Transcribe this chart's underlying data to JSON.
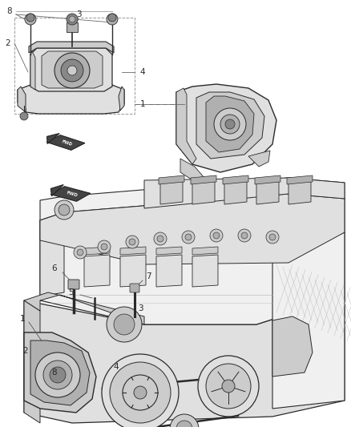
{
  "bg_color": "#ffffff",
  "line_color": "#2a2a2a",
  "gray1": "#f0f0f0",
  "gray2": "#e0e0e0",
  "gray3": "#cccccc",
  "gray4": "#b0b0b0",
  "gray5": "#888888",
  "gray6": "#555555",
  "fig_width": 4.38,
  "fig_height": 5.33,
  "dpi": 100
}
